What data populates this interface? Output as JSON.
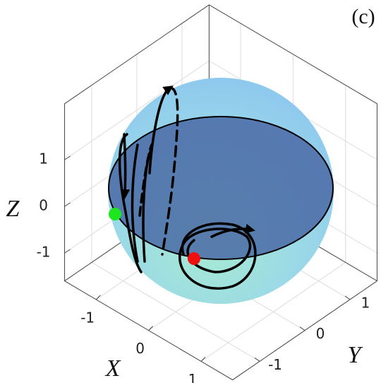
{
  "chart_data": {
    "type": "sphere3d",
    "panel_label": "(c)",
    "x_label": "X",
    "y_label": "Y",
    "z_label": "Z",
    "xlim": [
      -1.6,
      1.6
    ],
    "ylim": [
      -1.6,
      1.6
    ],
    "zlim": [
      -1.6,
      2.2
    ],
    "xticks": [
      -1,
      0,
      1
    ],
    "yticks": [
      -1,
      0,
      1
    ],
    "zticks": [
      -1,
      0,
      1
    ],
    "grid": true
  }
}
